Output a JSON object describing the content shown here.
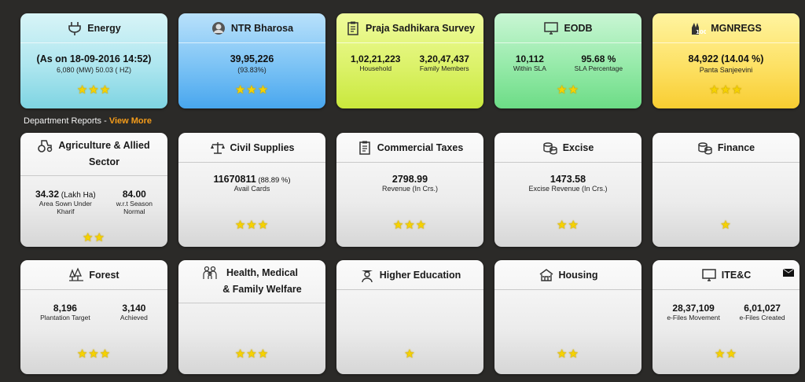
{
  "top_cards": [
    {
      "title": "Energy",
      "icon": "plug-icon",
      "line1": "(As on 18-09-2016 14:52)",
      "line2": "6,080 (MW) 50.03 ( HZ)",
      "stars": "★★★"
    },
    {
      "title": "NTR Bharosa",
      "icon": "portrait-icon",
      "line1": "39,95,226",
      "line2": "(93.83%)",
      "stars": "★★★"
    },
    {
      "title": "Praja Sadhikara Survey",
      "icon": "clipboard-icon",
      "v1": "1,02,21,223",
      "l1": "Household",
      "v2": "3,20,47,437",
      "l2": "Family Members"
    },
    {
      "title": "EODB",
      "icon": "monitor-icon",
      "v1": "10,112",
      "l1": "Within SLA",
      "v2": "95.68 %",
      "l2": "SLA Percentage",
      "stars": "★★"
    },
    {
      "title": "MGNREGS",
      "icon": "hundred-days-icon",
      "line1": "84,922 (14.04 %)",
      "line2": "Panta Sanjeevini",
      "stars": "★★★"
    }
  ],
  "section": {
    "label": "Department Reports - ",
    "link": "View More"
  },
  "dept_row1": [
    {
      "title1": "Agriculture & Allied",
      "title2": "Sector",
      "icon": "tractor-icon",
      "v1": "34.32",
      "v1b": " (Lakh Ha)",
      "l1a": "Area Sown Under",
      "l1b": "Kharif",
      "v2": "84.00",
      "l2a": "w.r.t Season",
      "l2b": "Normal",
      "stars": "★★"
    },
    {
      "title": "Civil Supplies",
      "icon": "scales-icon",
      "v": "11670811",
      "vb": " (88.89 %)",
      "l": "Avail Cards",
      "stars": "★★★"
    },
    {
      "title": "Commercial Taxes",
      "icon": "clipboard-icon",
      "v": "2798.99",
      "l": "Revenue (In Crs.)",
      "stars": "★★★"
    },
    {
      "title": "Excise",
      "icon": "coins-icon",
      "v": "1473.58",
      "l": "Excise Revenue (In Crs.)",
      "stars": "★★"
    },
    {
      "title": "Finance",
      "icon": "coins-icon",
      "stars": "★"
    }
  ],
  "dept_row2": [
    {
      "title": "Forest",
      "icon": "forest-icon",
      "v1": "8,196",
      "l1": "Plantation Target",
      "v2": "3,140",
      "l2": "Achieved",
      "stars": "★★★"
    },
    {
      "title1": "Health, Medical",
      "title2": "& Family Welfare",
      "icon": "family-icon",
      "stars": "★★★"
    },
    {
      "title": "Higher Education",
      "icon": "graduate-icon",
      "stars": "★"
    },
    {
      "title": "Housing",
      "icon": "house-icon",
      "stars": "★★"
    },
    {
      "title": "ITE&C",
      "icon": "monitor-icon",
      "v1": "28,37,109",
      "l1": "e-Files Movement",
      "v2": "6,01,027",
      "l2": "e-Files Created",
      "stars": "★★"
    }
  ],
  "colors": {
    "background": "#2b2a28",
    "link": "#f59c1a",
    "star": "#f6d200"
  }
}
